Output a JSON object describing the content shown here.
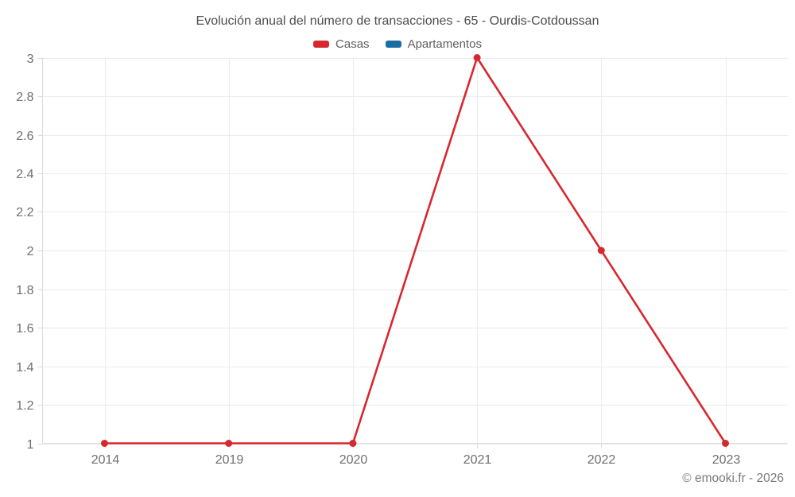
{
  "title": "Evolución anual del número de transacciones - 65 - Ourdis-Cotdoussan",
  "legend": {
    "items": [
      {
        "label": "Casas",
        "color": "#d7282e"
      },
      {
        "label": "Apartamentos",
        "color": "#1b6ea5"
      }
    ]
  },
  "footer": {
    "text": "© emooki.fr - 2026"
  },
  "styles": {
    "gridline_color": "#ebebeb",
    "axis_color": "#dcdcdc",
    "tick_color": "#d9d9d9",
    "label_color": "#6f6f6f",
    "title_color": "#4d4d4d"
  },
  "chart_data": {
    "type": "line",
    "title": "Evolución anual del número de transacciones - 65 - Ourdis-Cotdoussan",
    "x": [
      "2014",
      "2019",
      "2020",
      "2021",
      "2022",
      "2023"
    ],
    "series": [
      {
        "name": "Casas",
        "color": "#d7282e",
        "values": [
          1,
          1,
          1,
          3,
          2,
          1
        ]
      },
      {
        "name": "Apartamentos",
        "color": "#1b6ea5",
        "values": []
      }
    ],
    "xlabel": "",
    "ylabel": "",
    "ylim": [
      1,
      3
    ],
    "yticks": [
      1,
      1.2,
      1.4,
      1.6,
      1.8,
      2,
      2.2,
      2.4,
      2.6,
      2.8,
      3
    ],
    "grid": true,
    "legend_position": "top",
    "marker": "circle"
  }
}
